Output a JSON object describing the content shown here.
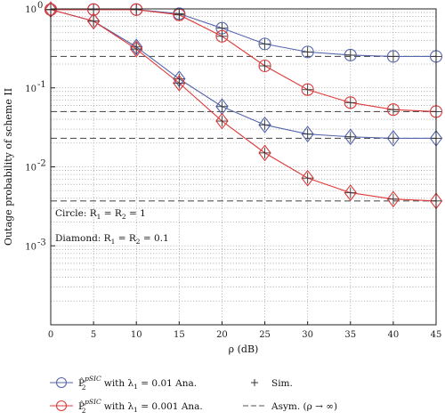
{
  "chart_data": {
    "type": "line",
    "title": "",
    "xlabel": "ρ (dB)",
    "ylabel": "Outage probability of scheme II",
    "x": [
      0,
      5,
      10,
      15,
      20,
      25,
      30,
      35,
      40,
      45
    ],
    "xlim": [
      0,
      45
    ],
    "ylim": [
      0.0001,
      1
    ],
    "y_scale": "log",
    "grid": true,
    "x_ticks": [
      "0",
      "5",
      "10",
      "15",
      "20",
      "25",
      "30",
      "35",
      "40",
      "45"
    ],
    "y_ticks": [
      {
        "base": "10",
        "exp": "0",
        "value": 1
      },
      {
        "base": "10",
        "exp": "-1",
        "value": 0.1
      },
      {
        "base": "10",
        "exp": "-2",
        "value": 0.01
      },
      {
        "base": "10",
        "exp": "-3",
        "value": 0.001
      }
    ],
    "colors": {
      "blue": "#5566aa",
      "red": "#dd3a3a",
      "sim": "#333333",
      "asym": "#555555"
    },
    "series": [
      {
        "name": "P̂₂^pSIC with λ₁ = 0.01 Ana. (Circle: R₁ = R₂ = 1)",
        "color": "blue",
        "marker": "circle",
        "values": [
          0.98,
          0.98,
          0.98,
          0.87,
          0.57,
          0.36,
          0.285,
          0.26,
          0.25,
          0.25
        ]
      },
      {
        "name": "P̂₂^pSIC with λ₁ = 0.001 Ana. (Circle: R₁ = R₂ = 1)",
        "color": "red",
        "marker": "circle",
        "values": [
          0.98,
          0.98,
          0.98,
          0.84,
          0.45,
          0.19,
          0.095,
          0.065,
          0.053,
          0.05
        ]
      },
      {
        "name": "P̂₂^pSIC with λ₁ = 0.01 Ana. (Diamond: R₁ = R₂ = 0.1)",
        "color": "blue",
        "marker": "diamond",
        "values": [
          0.98,
          0.7,
          0.33,
          0.13,
          0.058,
          0.034,
          0.026,
          0.024,
          0.023,
          0.023
        ]
      },
      {
        "name": "P̂₂^pSIC with λ₁ = 0.001 Ana. (Diamond: R₁ = R₂ = 0.1)",
        "color": "red",
        "marker": "diamond",
        "values": [
          0.98,
          0.7,
          0.31,
          0.115,
          0.038,
          0.015,
          0.0072,
          0.0047,
          0.0039,
          0.0037
        ]
      }
    ],
    "asymptotes": [
      0.25,
      0.05,
      0.023,
      0.0037
    ],
    "annotations": [
      {
        "text": "Circle: R",
        "sub1": "1",
        "mid": " = R",
        "sub2": "2",
        "tail": " = 1"
      },
      {
        "text": "Diamond: R",
        "sub1": "1",
        "mid": " = R",
        "sub2": "2",
        "tail": " = 0.1"
      }
    ],
    "legend": {
      "placement": "bottom",
      "entries": [
        {
          "symbol": "circle",
          "color": "blue",
          "p": "P̂",
          "sub": "2",
          "sup": "pSIC",
          "text": " with λ",
          "lsub": "1",
          "tail": " = 0.01 Ana."
        },
        {
          "symbol": "circle",
          "color": "red",
          "p": "P̂",
          "sub": "2",
          "sup": "pSIC",
          "text": " with λ",
          "lsub": "1",
          "tail": " = 0.001 Ana."
        },
        {
          "symbol": "plus",
          "label": "Sim."
        },
        {
          "symbol": "dash",
          "label": "Asym. (ρ → ∞)"
        }
      ]
    }
  }
}
